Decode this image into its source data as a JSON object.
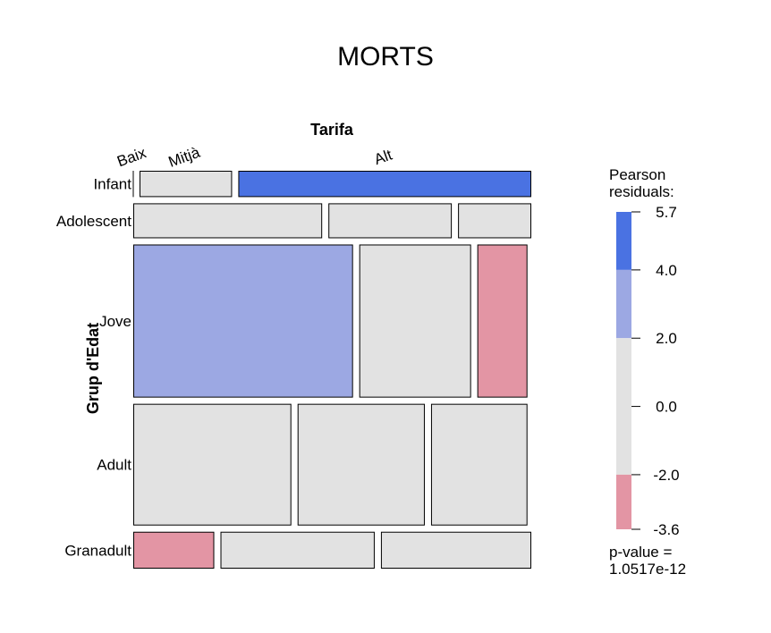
{
  "chart_data": {
    "type": "mosaic",
    "title": "MORTS",
    "column_variable": "Tarifa",
    "row_variable": "Grup d'Edat",
    "columns": [
      "Baix",
      "Mitjà",
      "Alt"
    ],
    "rows": [
      "Infant",
      "Adolescent",
      "Jove",
      "Adult",
      "Granadult"
    ],
    "row_shares": [
      0.067,
      0.089,
      0.39,
      0.31,
      0.094
    ],
    "col_shares_by_row": [
      [
        0.0,
        0.24,
        0.76
      ],
      [
        0.49,
        0.32,
        0.19
      ],
      [
        0.57,
        0.29,
        0.13
      ],
      [
        0.41,
        0.33,
        0.25
      ],
      [
        0.21,
        0.4,
        0.39
      ]
    ],
    "shading": [
      [
        "none",
        "none",
        "high"
      ],
      [
        "none",
        "none",
        "none"
      ],
      [
        "mid",
        "none",
        "neg"
      ],
      [
        "none",
        "none",
        "none"
      ],
      [
        "neg",
        "none",
        "none"
      ]
    ],
    "colors": {
      "high": "#4a72e2",
      "mid": "#9ca8e3",
      "none": "#e2e2e2",
      "neg": "#e395a4",
      "stroke": "#000000"
    },
    "legend": {
      "title": "Pearson\nresiduals:",
      "ticks": [
        "5.7",
        "4.0",
        "2.0",
        "0.0",
        "-2.0",
        "-3.6"
      ],
      "tick_values": [
        5.7,
        4.0,
        2.0,
        0.0,
        -2.0,
        -3.6
      ],
      "bands": [
        {
          "from": 4.0,
          "to": 5.7,
          "shade": "high"
        },
        {
          "from": 2.0,
          "to": 4.0,
          "shade": "mid"
        },
        {
          "from": -2.0,
          "to": 2.0,
          "shade": "none"
        },
        {
          "from": -3.6,
          "to": -2.0,
          "shade": "neg"
        }
      ],
      "p_value": "p-value =\n1.0517e-12"
    }
  }
}
